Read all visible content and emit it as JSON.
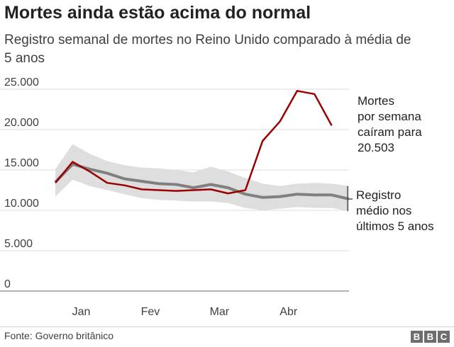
{
  "title": "Mortes ainda estão acima do normal",
  "subtitle": "Registro semanal de mortes no Reino Unido comparado à média de 5 anos",
  "source": "Fonte: Governo britânico",
  "logo": [
    "B",
    "B",
    "C"
  ],
  "chart_data": {
    "type": "line",
    "title": "Mortes ainda estão acima do normal",
    "subtitle": "Registro semanal de mortes no Reino Unido comparado à média de 5 anos",
    "ylim": [
      0,
      25000
    ],
    "y_ticks": [
      0,
      5000,
      10000,
      15000,
      20000,
      25000
    ],
    "y_tick_labels": [
      "0",
      "5.000",
      "10.000",
      "15.000",
      "20.000",
      "25.000"
    ],
    "x_ticks": [
      {
        "label": "Jan",
        "week": 2.5
      },
      {
        "label": "Fev",
        "week": 6.5
      },
      {
        "label": "Mar",
        "week": 10.5
      },
      {
        "label": "Abr",
        "week": 14.5
      }
    ],
    "x_weeks": [
      1,
      2,
      3,
      4,
      5,
      6,
      7,
      8,
      9,
      10,
      11,
      12,
      13,
      14,
      15,
      16,
      17,
      18
    ],
    "grid": true,
    "colors": {
      "deaths": "#990000",
      "average": "#808080",
      "range": "#dedede",
      "grid": "#dddddd"
    },
    "series": [
      {
        "key": "deaths",
        "values": [
          13400,
          16000,
          14800,
          13400,
          13100,
          12600,
          12500,
          12400,
          12500,
          12600,
          12100,
          12500,
          18600,
          21000,
          24800,
          24400,
          20500
        ]
      },
      {
        "key": "average",
        "values": [
          13500,
          15700,
          15100,
          14600,
          13900,
          13600,
          13300,
          13200,
          12800,
          13200,
          12800,
          12000,
          11600,
          11700,
          12000,
          11900,
          11900,
          11400
        ]
      }
    ],
    "range": {
      "upper": [
        15100,
        18200,
        17000,
        16100,
        15600,
        15300,
        15200,
        15000,
        14700,
        15400,
        14800,
        14000,
        13300,
        13000,
        13300,
        13400,
        13300,
        13000
      ],
      "lower": [
        11700,
        13800,
        13000,
        12500,
        12000,
        11500,
        11300,
        11200,
        11100,
        11100,
        10900,
        10300,
        10000,
        10200,
        10400,
        10300,
        10300,
        9900
      ]
    },
    "annotations": [
      {
        "key": "deaths",
        "text": [
          "Mortes",
          "por semana",
          "caíram para",
          "20.503"
        ]
      },
      {
        "key": "average",
        "text": [
          "Registro",
          "médio nos",
          "últimos 5 anos"
        ]
      }
    ]
  }
}
